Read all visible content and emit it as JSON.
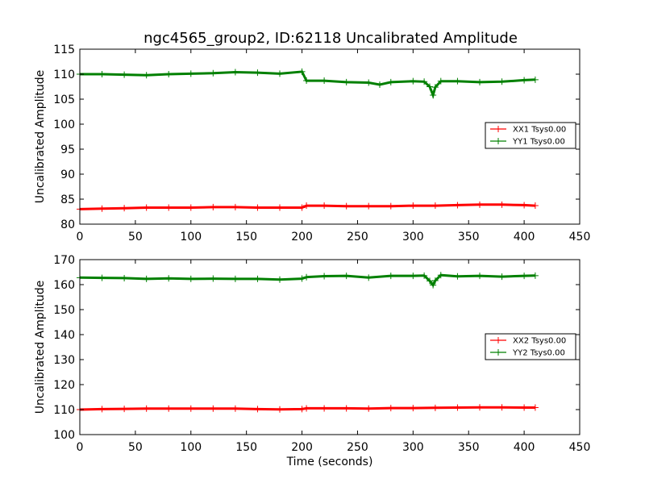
{
  "title": "ngc4565_group2, ID:62118 Uncalibrated Amplitude",
  "chart_data": [
    {
      "type": "line",
      "ylabel": "Uncalibrated Amplitude",
      "xlabel": "",
      "xlim": [
        0,
        450
      ],
      "ylim": [
        80,
        115
      ],
      "xticks": [
        "0",
        "50",
        "100",
        "150",
        "200",
        "250",
        "300",
        "350",
        "400",
        "450"
      ],
      "yticks": [
        "80",
        "85",
        "90",
        "95",
        "100",
        "105",
        "110",
        "115"
      ],
      "legend_position": "center-right",
      "series": [
        {
          "name": "XX1 Tsys0.00",
          "color": "#ff0000",
          "x": [
            0,
            20,
            40,
            60,
            80,
            100,
            120,
            140,
            160,
            180,
            200,
            204,
            220,
            240,
            260,
            280,
            300,
            320,
            340,
            360,
            380,
            400,
            410
          ],
          "values": [
            83.0,
            83.1,
            83.2,
            83.3,
            83.3,
            83.3,
            83.4,
            83.4,
            83.3,
            83.3,
            83.3,
            83.7,
            83.7,
            83.6,
            83.6,
            83.6,
            83.7,
            83.7,
            83.8,
            83.9,
            83.9,
            83.8,
            83.7
          ]
        },
        {
          "name": "YY1 Tsys0.00",
          "color": "#008000",
          "x": [
            0,
            20,
            40,
            60,
            80,
            100,
            120,
            140,
            160,
            180,
            200,
            204,
            220,
            240,
            260,
            270,
            280,
            300,
            310,
            315,
            318,
            320,
            325,
            340,
            360,
            380,
            400,
            410
          ],
          "values": [
            110.0,
            110.0,
            109.9,
            109.8,
            110.0,
            110.1,
            110.2,
            110.4,
            110.3,
            110.1,
            110.5,
            108.7,
            108.7,
            108.4,
            108.3,
            107.9,
            108.4,
            108.6,
            108.5,
            107.5,
            105.8,
            107.4,
            108.6,
            108.6,
            108.4,
            108.5,
            108.8,
            108.9
          ]
        }
      ]
    },
    {
      "type": "line",
      "ylabel": "Uncalibrated Amplitude",
      "xlabel": "Time (seconds)",
      "xlim": [
        0,
        450
      ],
      "ylim": [
        100,
        170
      ],
      "xticks": [
        "0",
        "50",
        "100",
        "150",
        "200",
        "250",
        "300",
        "350",
        "400",
        "450"
      ],
      "yticks": [
        "100",
        "110",
        "120",
        "130",
        "140",
        "150",
        "160",
        "170"
      ],
      "legend_position": "center-right",
      "series": [
        {
          "name": "XX2 Tsys0.00",
          "color": "#ff0000",
          "x": [
            0,
            20,
            40,
            60,
            80,
            100,
            120,
            140,
            160,
            180,
            200,
            204,
            220,
            240,
            260,
            280,
            300,
            320,
            340,
            360,
            380,
            400,
            410
          ],
          "values": [
            110.0,
            110.2,
            110.3,
            110.4,
            110.4,
            110.4,
            110.4,
            110.4,
            110.2,
            110.1,
            110.2,
            110.5,
            110.5,
            110.5,
            110.4,
            110.6,
            110.6,
            110.7,
            110.8,
            110.9,
            110.9,
            110.8,
            110.8
          ]
        },
        {
          "name": "YY2 Tsys0.00",
          "color": "#008000",
          "x": [
            0,
            20,
            40,
            60,
            80,
            100,
            120,
            140,
            160,
            180,
            200,
            204,
            220,
            240,
            260,
            280,
            300,
            310,
            315,
            318,
            320,
            325,
            340,
            360,
            380,
            400,
            410
          ],
          "values": [
            162.8,
            162.7,
            162.6,
            162.3,
            162.5,
            162.3,
            162.4,
            162.3,
            162.3,
            162.0,
            162.4,
            163.0,
            163.4,
            163.5,
            162.8,
            163.5,
            163.5,
            163.6,
            161.5,
            159.8,
            161.6,
            163.8,
            163.3,
            163.5,
            163.2,
            163.5,
            163.6
          ]
        }
      ]
    }
  ]
}
